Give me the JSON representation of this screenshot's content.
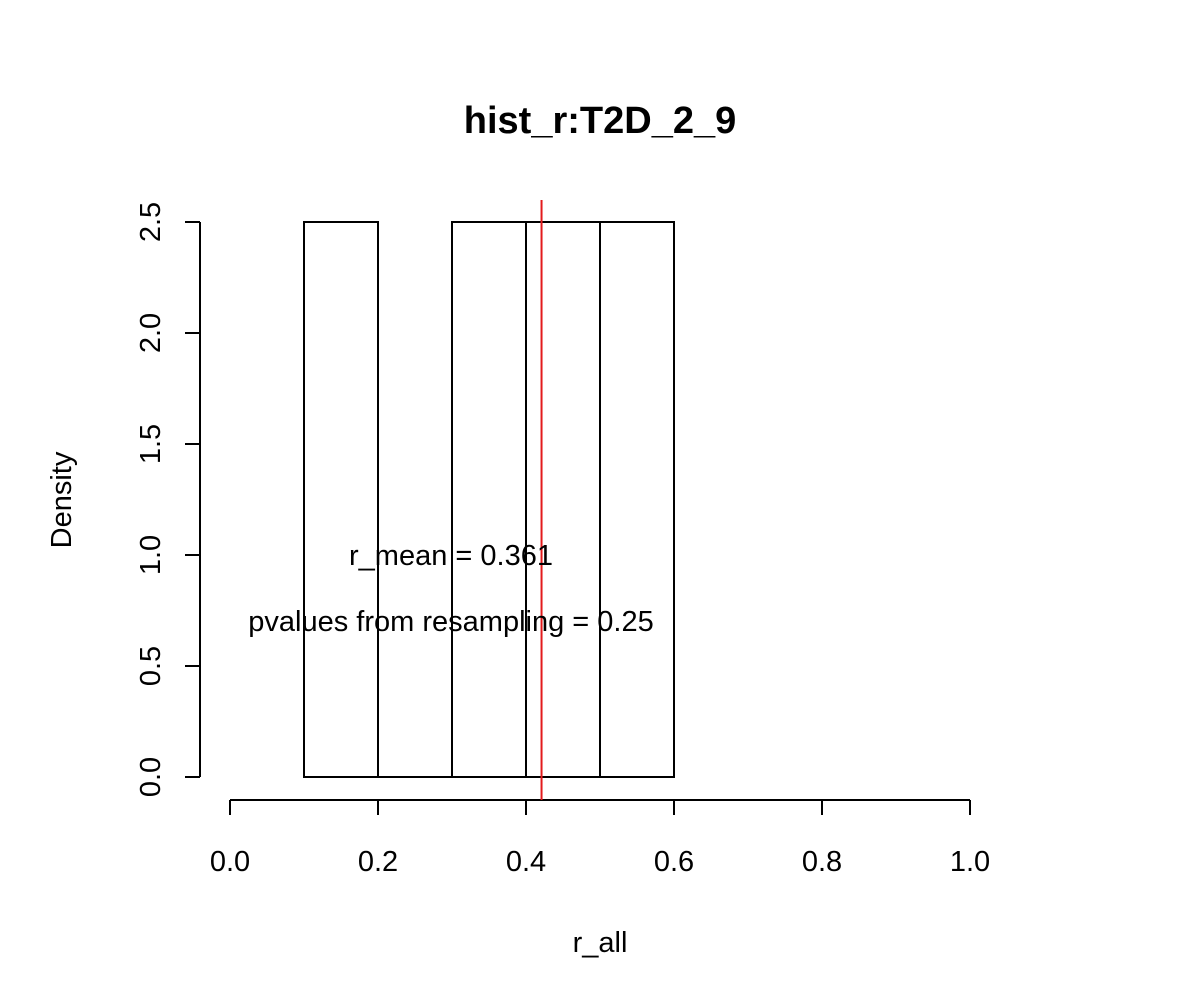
{
  "chart_data": {
    "type": "bar",
    "title": "hist_r:T2D_2_9",
    "xlabel": "r_all",
    "ylabel": "Density",
    "xlim": [
      0.0,
      1.0
    ],
    "ylim": [
      0.0,
      2.5
    ],
    "x_ticks": [
      "0.0",
      "0.2",
      "0.4",
      "0.6",
      "0.8",
      "1.0"
    ],
    "y_ticks": [
      "0.0",
      "0.5",
      "1.0",
      "1.5",
      "2.0",
      "2.5"
    ],
    "bins": [
      {
        "start": 0.1,
        "end": 0.2,
        "density": 2.5
      },
      {
        "start": 0.2,
        "end": 0.3,
        "density": 0.0
      },
      {
        "start": 0.3,
        "end": 0.4,
        "density": 2.5
      },
      {
        "start": 0.4,
        "end": 0.5,
        "density": 2.5
      },
      {
        "start": 0.5,
        "end": 0.6,
        "density": 2.5
      }
    ],
    "reference_line": {
      "x": 0.421,
      "color": "#e31a1c"
    },
    "annotations": {
      "r_mean": "r_mean = 0.361",
      "pvalue": "pvalues from resampling = 0.25"
    },
    "grid": false,
    "legend": "none",
    "colors": {
      "bar_fill": "#ffffff",
      "bar_stroke": "#000000",
      "ref_line": "#e31a1c"
    }
  }
}
